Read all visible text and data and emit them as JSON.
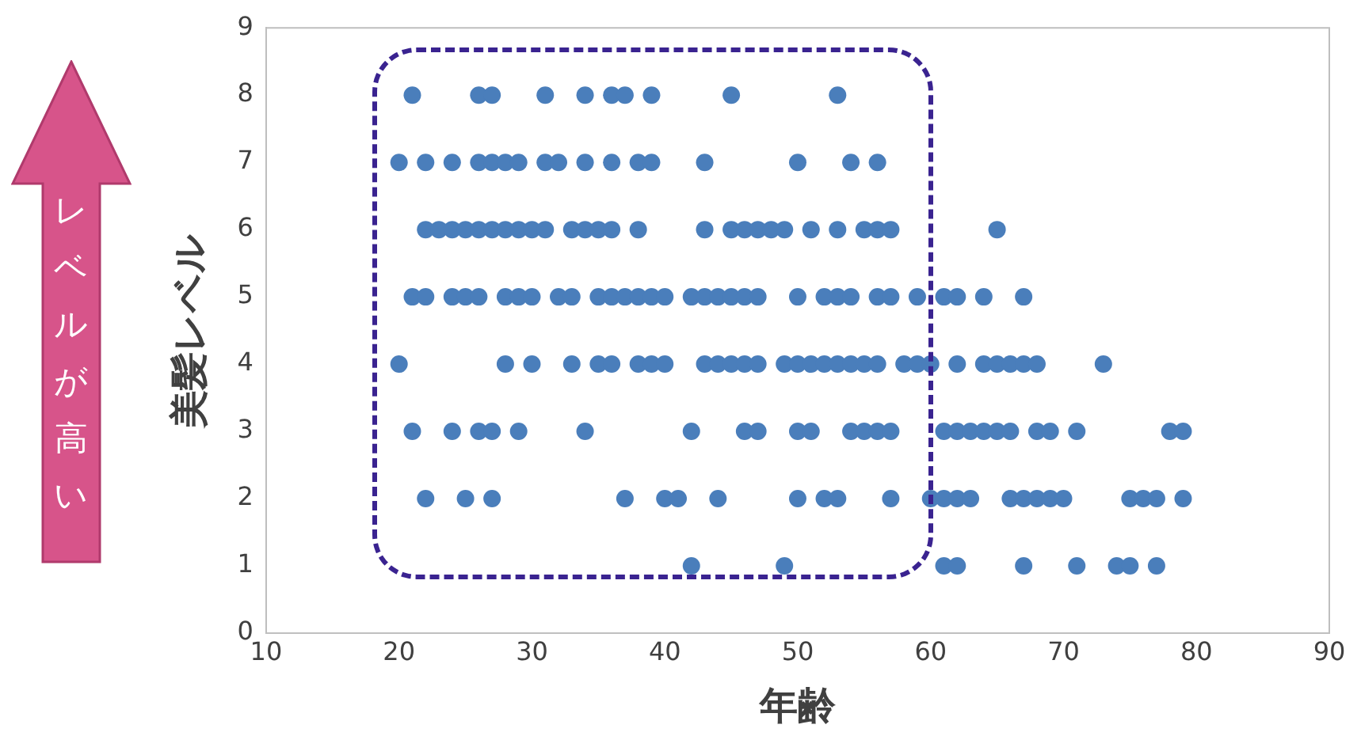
{
  "chart_data": {
    "type": "scatter",
    "xlabel": "年齢",
    "ylabel": "美髪レベル",
    "annotations": [
      "レベルが高い"
    ],
    "xlim": [
      10,
      90
    ],
    "xticks": [
      10,
      20,
      30,
      40,
      50,
      60,
      70,
      80,
      90
    ],
    "ylim": [
      0,
      9
    ],
    "yticks": [
      0,
      1,
      2,
      3,
      4,
      5,
      6,
      7,
      8,
      9
    ],
    "grid": false,
    "legend": false,
    "marker": "circle",
    "series": [
      {
        "color": "#4a7ebb",
        "x": [
          21,
          26,
          27,
          31,
          34,
          36,
          37,
          39,
          45,
          53,
          20,
          22,
          24,
          26,
          27,
          28,
          29,
          31,
          32,
          34,
          36,
          38,
          39,
          43,
          50,
          54,
          56,
          22,
          23,
          24,
          25,
          26,
          27,
          28,
          29,
          30,
          31,
          33,
          34,
          35,
          36,
          38,
          43,
          45,
          46,
          47,
          48,
          49,
          51,
          53,
          55,
          56,
          57,
          65,
          21,
          22,
          24,
          25,
          26,
          28,
          29,
          30,
          32,
          33,
          35,
          36,
          37,
          38,
          39,
          40,
          42,
          43,
          44,
          45,
          46,
          47,
          50,
          52,
          53,
          54,
          56,
          57,
          59,
          61,
          62,
          64,
          67,
          20,
          28,
          30,
          33,
          35,
          36,
          38,
          39,
          40,
          43,
          44,
          45,
          46,
          47,
          49,
          50,
          51,
          52,
          53,
          54,
          55,
          56,
          58,
          59,
          60,
          62,
          64,
          65,
          66,
          67,
          68,
          73,
          21,
          24,
          26,
          27,
          29,
          34,
          42,
          46,
          47,
          50,
          51,
          54,
          55,
          56,
          57,
          61,
          62,
          63,
          64,
          65,
          66,
          68,
          69,
          71,
          78,
          79,
          22,
          25,
          27,
          37,
          40,
          41,
          44,
          50,
          52,
          53,
          57,
          60,
          61,
          62,
          63,
          66,
          67,
          68,
          69,
          70,
          75,
          76,
          77,
          79,
          42,
          49,
          61,
          62,
          67,
          71,
          74,
          75,
          77
        ],
        "values": [
          8,
          8,
          8,
          8,
          8,
          8,
          8,
          8,
          8,
          8,
          7,
          7,
          7,
          7,
          7,
          7,
          7,
          7,
          7,
          7,
          7,
          7,
          7,
          7,
          7,
          7,
          7,
          6,
          6,
          6,
          6,
          6,
          6,
          6,
          6,
          6,
          6,
          6,
          6,
          6,
          6,
          6,
          6,
          6,
          6,
          6,
          6,
          6,
          6,
          6,
          6,
          6,
          6,
          6,
          5,
          5,
          5,
          5,
          5,
          5,
          5,
          5,
          5,
          5,
          5,
          5,
          5,
          5,
          5,
          5,
          5,
          5,
          5,
          5,
          5,
          5,
          5,
          5,
          5,
          5,
          5,
          5,
          5,
          5,
          5,
          5,
          5,
          4,
          4,
          4,
          4,
          4,
          4,
          4,
          4,
          4,
          4,
          4,
          4,
          4,
          4,
          4,
          4,
          4,
          4,
          4,
          4,
          4,
          4,
          4,
          4,
          4,
          4,
          4,
          4,
          4,
          4,
          4,
          4,
          3,
          3,
          3,
          3,
          3,
          3,
          3,
          3,
          3,
          3,
          3,
          3,
          3,
          3,
          3,
          3,
          3,
          3,
          3,
          3,
          3,
          3,
          3,
          3,
          3,
          3,
          2,
          2,
          2,
          2,
          2,
          2,
          2,
          2,
          2,
          2,
          2,
          2,
          2,
          2,
          2,
          2,
          2,
          2,
          2,
          2,
          2,
          2,
          2,
          2,
          1,
          1,
          1,
          1,
          1,
          1,
          1,
          1,
          1
        ]
      }
    ]
  }
}
